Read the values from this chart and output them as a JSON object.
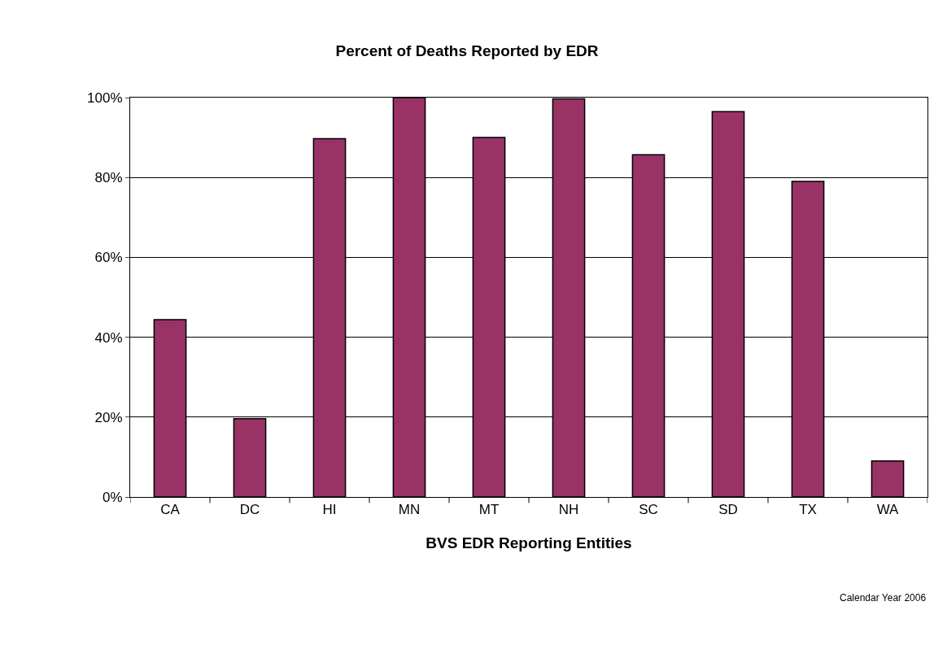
{
  "chart_data": {
    "type": "bar",
    "title": "Percent of Deaths Reported by EDR",
    "xlabel": "BVS EDR Reporting Entities",
    "categories": [
      "CA",
      "DC",
      "HI",
      "MN",
      "MT",
      "NH",
      "SC",
      "SD",
      "TX",
      "WA"
    ],
    "values": [
      44.4,
      19.6,
      89.7,
      100,
      90.0,
      99.7,
      85.7,
      96.5,
      79.0,
      9.0
    ],
    "color": "#993366",
    "ylim": [
      0,
      100
    ],
    "yticks": [
      {
        "value": 0,
        "label": "0%"
      },
      {
        "value": 20,
        "label": "20%"
      },
      {
        "value": 40,
        "label": "40%"
      },
      {
        "value": 60,
        "label": "60%"
      },
      {
        "value": 80,
        "label": "80%"
      },
      {
        "value": 100,
        "label": "100%"
      }
    ],
    "grid": "y",
    "annotations": [
      "Calendar Year 2006"
    ]
  }
}
